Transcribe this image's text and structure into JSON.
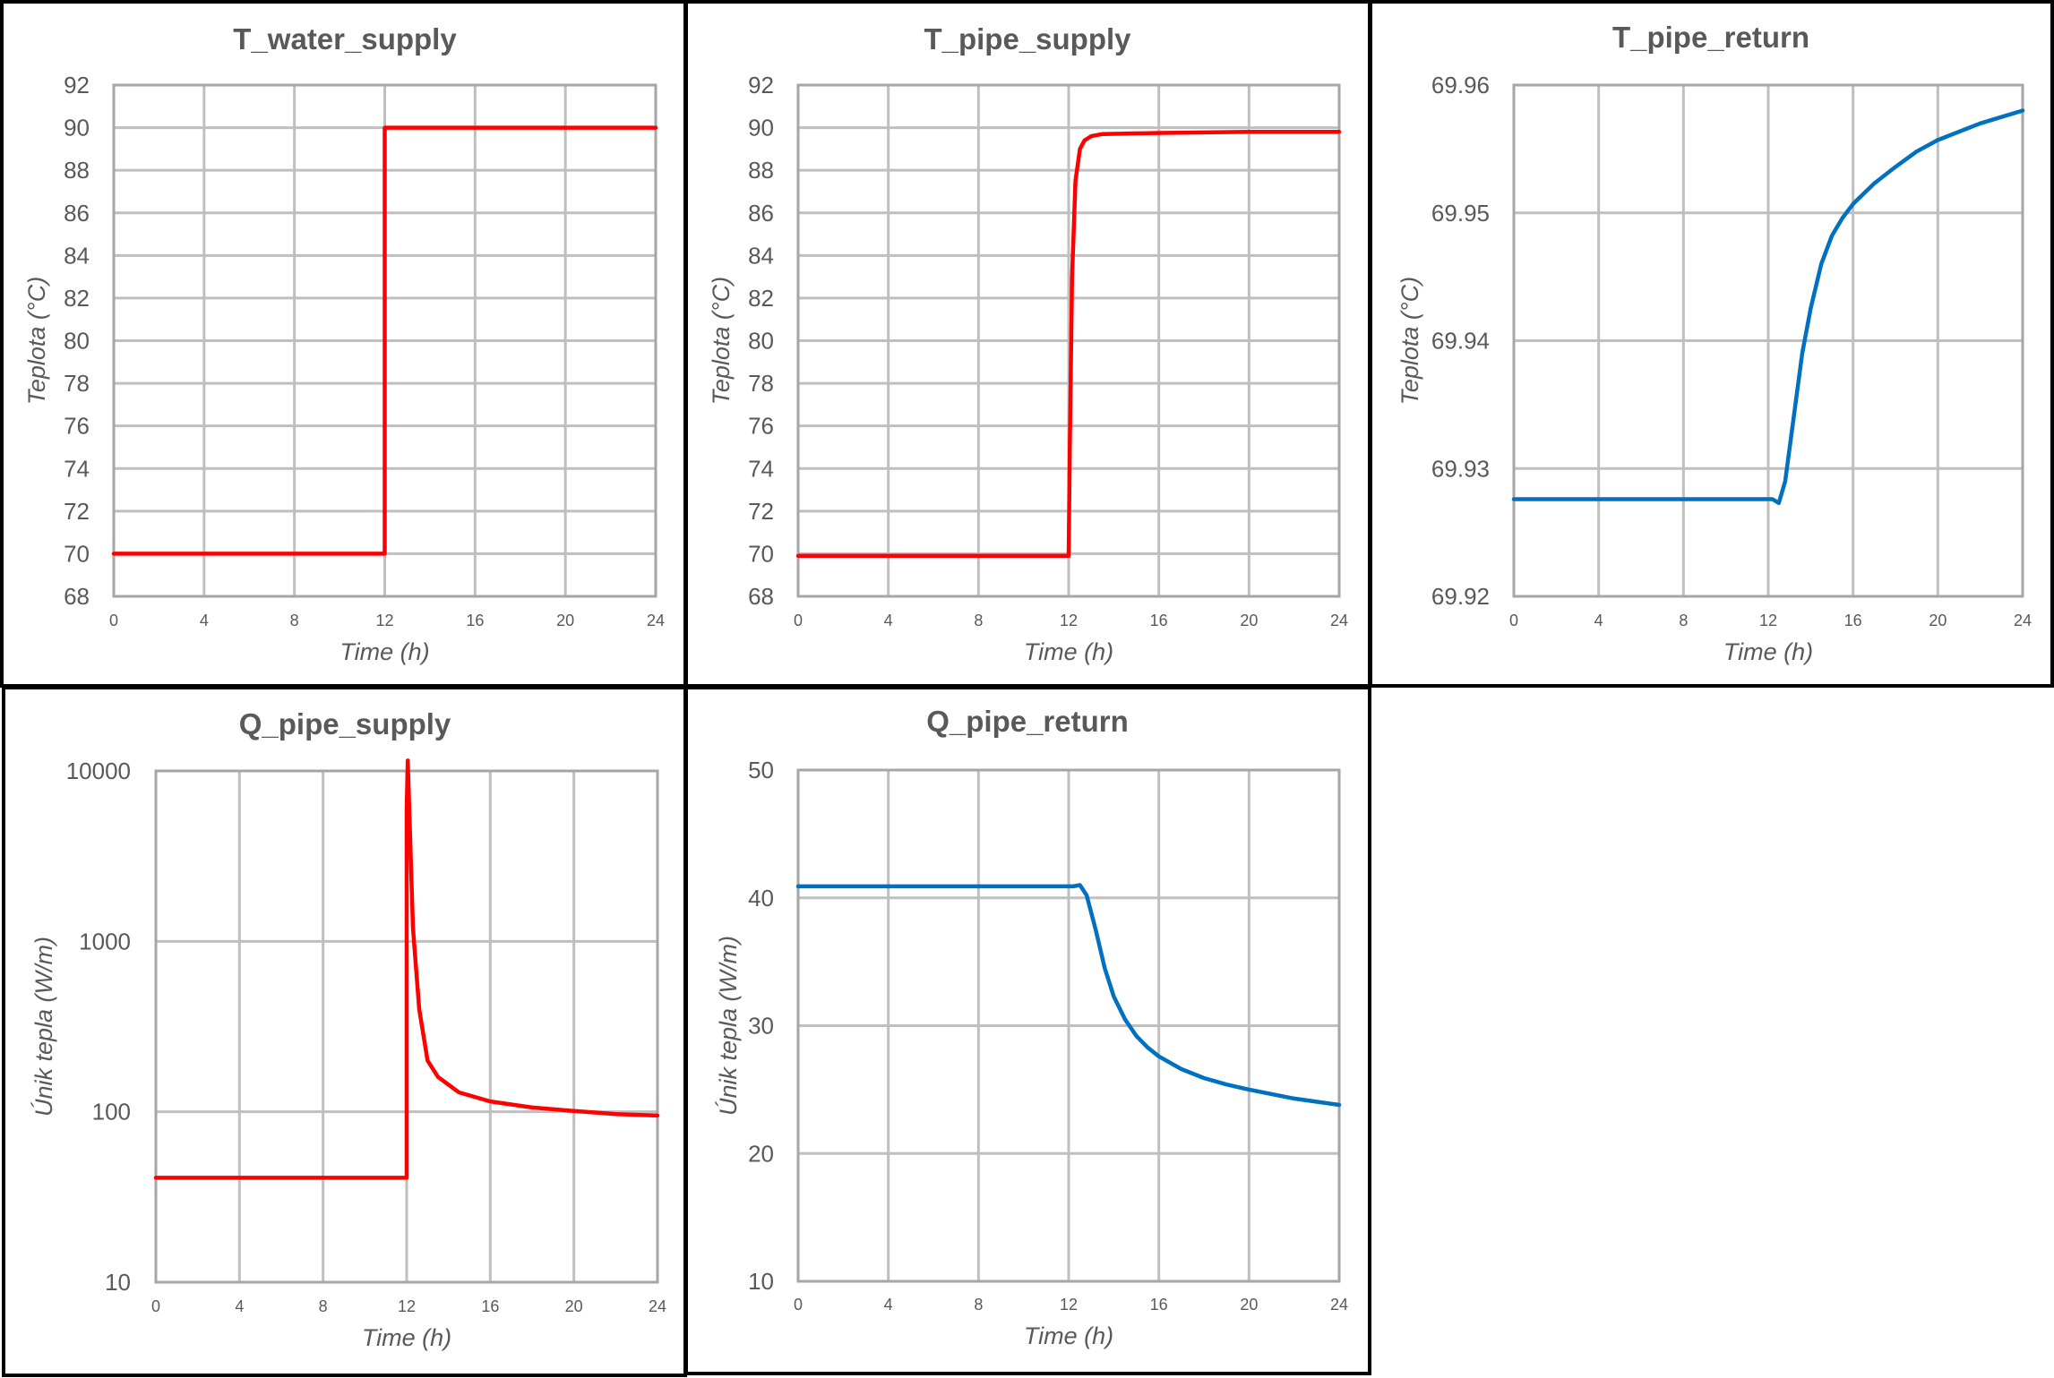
{
  "colors": {
    "red": "#ff0000",
    "blue": "#0070c0",
    "text": "#595959",
    "grid": "#bfbfbf"
  },
  "chart_data": [
    {
      "id": "t_water_supply",
      "type": "line",
      "title": "T_water_supply",
      "xlabel": "Time (h)",
      "ylabel": "Teplota (°C)",
      "xlim": [
        0,
        24
      ],
      "ylim": [
        68,
        92
      ],
      "yscale": "linear",
      "xticks": [
        "0",
        "4",
        "8",
        "12",
        "16",
        "20",
        "24"
      ],
      "yticks": [
        "68",
        "70",
        "72",
        "74",
        "76",
        "78",
        "80",
        "82",
        "84",
        "86",
        "88",
        "90",
        "92"
      ],
      "series": [
        {
          "name": "T_water_supply",
          "color": "#ff0000",
          "x": [
            0,
            12,
            12,
            24
          ],
          "y": [
            70,
            70,
            90,
            90
          ]
        }
      ]
    },
    {
      "id": "t_pipe_supply",
      "type": "line",
      "title": "T_pipe_supply",
      "xlabel": "Time (h)",
      "ylabel": "Teplota (°C)",
      "xlim": [
        0,
        24
      ],
      "ylim": [
        68,
        92
      ],
      "yscale": "linear",
      "xticks": [
        "0",
        "4",
        "8",
        "12",
        "16",
        "20",
        "24"
      ],
      "yticks": [
        "68",
        "70",
        "72",
        "74",
        "76",
        "78",
        "80",
        "82",
        "84",
        "86",
        "88",
        "90",
        "92"
      ],
      "series": [
        {
          "name": "T_pipe_supply",
          "color": "#ff0000",
          "x": [
            0,
            12,
            12.05,
            12.15,
            12.3,
            12.5,
            12.7,
            13.0,
            13.5,
            16,
            20,
            24
          ],
          "y": [
            69.9,
            69.9,
            75,
            83,
            87.5,
            89.0,
            89.4,
            89.6,
            89.7,
            89.75,
            89.8,
            89.8
          ]
        }
      ]
    },
    {
      "id": "t_pipe_return",
      "type": "line",
      "title": "T_pipe_return",
      "xlabel": "Time (h)",
      "ylabel": "Teplota (°C)",
      "xlim": [
        0,
        24
      ],
      "ylim": [
        69.92,
        69.96
      ],
      "yscale": "linear",
      "xticks": [
        "0",
        "4",
        "8",
        "12",
        "16",
        "20",
        "24"
      ],
      "yticks": [
        "69.92",
        "69.93",
        "69.94",
        "69.95",
        "69.96"
      ],
      "series": [
        {
          "name": "T_pipe_return",
          "color": "#0070c0",
          "x": [
            0,
            12.2,
            12.5,
            12.8,
            13.2,
            13.6,
            14.0,
            14.5,
            15.0,
            15.5,
            16.0,
            17.0,
            18.0,
            19.0,
            20.0,
            22.0,
            24.0
          ],
          "y": [
            69.9276,
            69.9276,
            69.9273,
            69.929,
            69.934,
            69.939,
            69.9425,
            69.946,
            69.9482,
            69.9496,
            69.9507,
            69.9523,
            69.9536,
            69.9548,
            69.9557,
            69.957,
            69.958
          ]
        }
      ]
    },
    {
      "id": "q_pipe_supply",
      "type": "line",
      "title": "Q_pipe_supply",
      "xlabel": "Time (h)",
      "ylabel": "Únik tepla (W/m)",
      "xlim": [
        0,
        24
      ],
      "ylim": [
        10,
        10000
      ],
      "yscale": "log",
      "ytick_values": [
        10,
        100,
        1000,
        10000
      ],
      "xticks": [
        "0",
        "4",
        "8",
        "12",
        "16",
        "20",
        "24"
      ],
      "yticks": [
        "10",
        "100",
        "1000",
        "10000"
      ],
      "ytick_color": "#ff0000",
      "series": [
        {
          "name": "Q_pipe_supply",
          "color": "#ff0000",
          "x": [
            0,
            12,
            12,
            12.05,
            12.3,
            12.6,
            13.0,
            13.5,
            14.5,
            16,
            18,
            20,
            22,
            24
          ],
          "y": [
            41,
            41,
            6000,
            11500,
            1200,
            400,
            200,
            160,
            130,
            115,
            106,
            101,
            97,
            95
          ]
        }
      ]
    },
    {
      "id": "q_pipe_return",
      "type": "line",
      "title": "Q_pipe_return",
      "xlabel": "Time (h)",
      "ylabel": "Únik tepla (W/m)",
      "xlim": [
        0,
        24
      ],
      "ylim": [
        10,
        50
      ],
      "yscale": "linear",
      "xticks": [
        "0",
        "4",
        "8",
        "12",
        "16",
        "20",
        "24"
      ],
      "yticks": [
        "10",
        "20",
        "30",
        "40",
        "50"
      ],
      "series": [
        {
          "name": "Q_pipe_return",
          "color": "#0070c0",
          "x": [
            0,
            12.2,
            12.5,
            12.8,
            13.2,
            13.6,
            14.0,
            14.5,
            15.0,
            15.5,
            16.0,
            17.0,
            18.0,
            19.0,
            20.0,
            22.0,
            24.0
          ],
          "y": [
            40.9,
            40.9,
            41.0,
            40.2,
            37.5,
            34.5,
            32.3,
            30.5,
            29.2,
            28.3,
            27.6,
            26.6,
            25.9,
            25.4,
            25.0,
            24.3,
            23.8
          ]
        }
      ]
    }
  ]
}
